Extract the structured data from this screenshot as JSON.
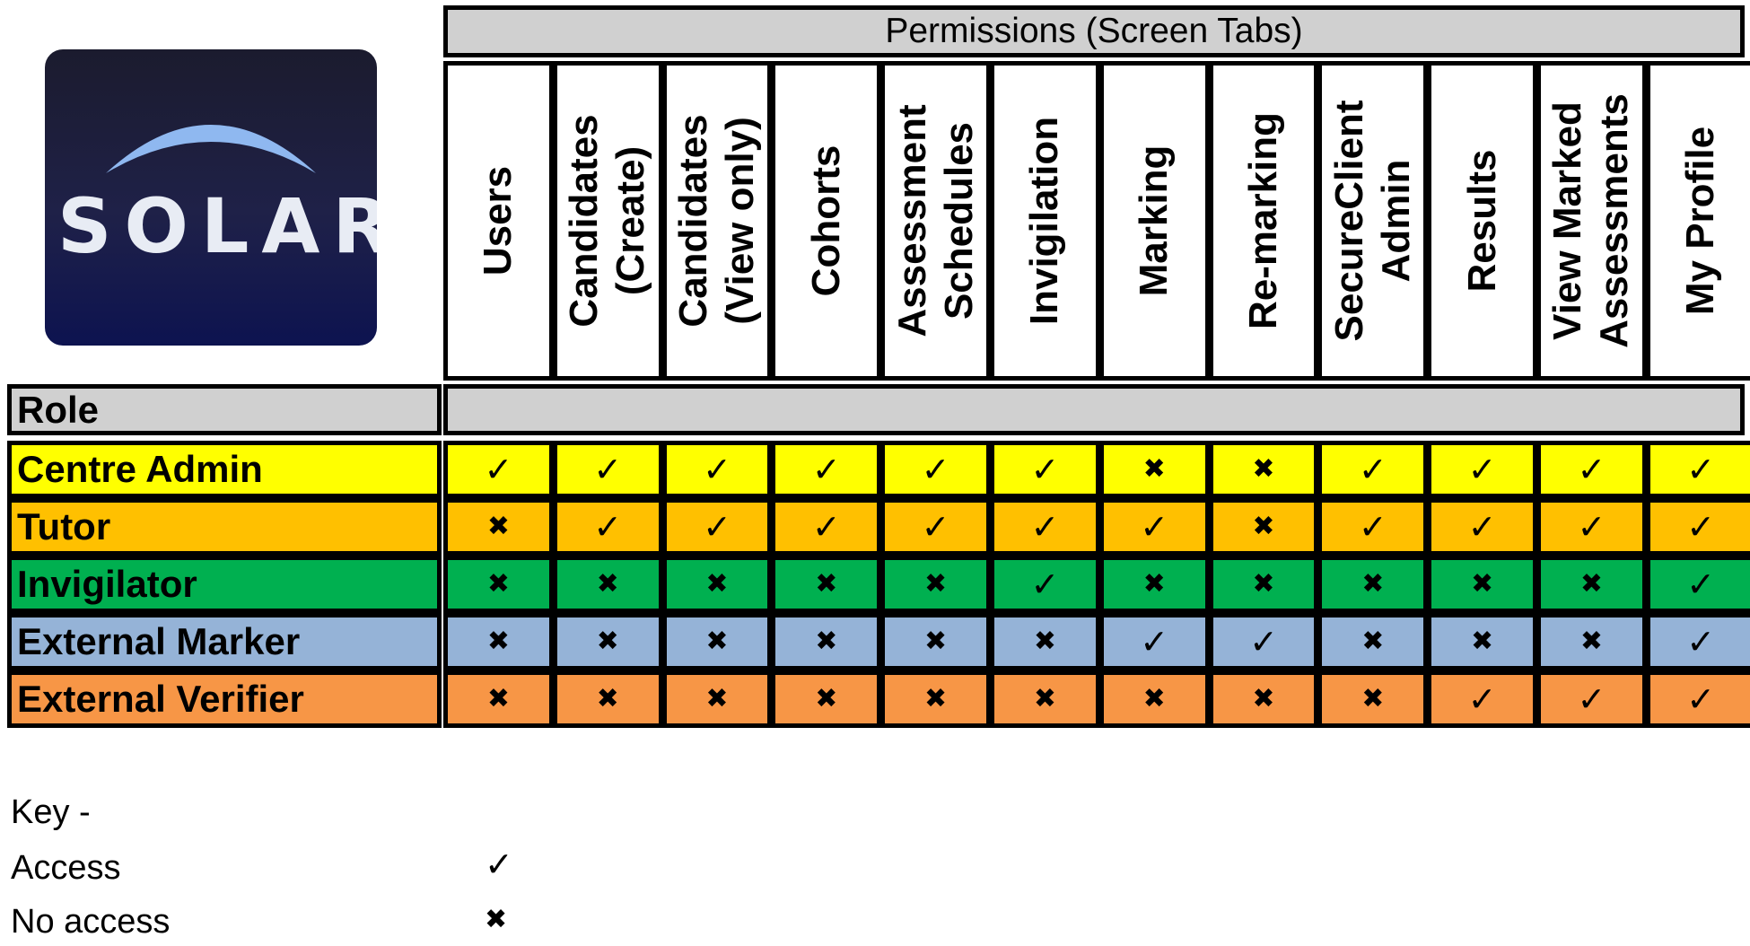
{
  "logo": {
    "text": "SOLAR",
    "background": "#1f2148",
    "arc_color": "#8fb8f0"
  },
  "permissions_title": "Permissions (Screen Tabs)",
  "columns": [
    {
      "line1": "Users",
      "line2": ""
    },
    {
      "line1": "Candidates",
      "line2": "(Create)"
    },
    {
      "line1": "Candidates",
      "line2": "(View only)"
    },
    {
      "line1": "Cohorts",
      "line2": ""
    },
    {
      "line1": "Assessment",
      "line2": "Schedules"
    },
    {
      "line1": "Invigilation",
      "line2": ""
    },
    {
      "line1": "Marking",
      "line2": ""
    },
    {
      "line1": "Re-marking",
      "line2": ""
    },
    {
      "line1": "SecureClient",
      "line2": "Admin"
    },
    {
      "line1": "Results",
      "line2": ""
    },
    {
      "line1": "View Marked",
      "line2": "Assessments"
    },
    {
      "line1": "My Profile",
      "line2": ""
    }
  ],
  "role_header": "Role",
  "rows": [
    {
      "role": "Centre Admin",
      "color": "#ffff00",
      "access": [
        true,
        true,
        true,
        true,
        true,
        true,
        false,
        false,
        true,
        true,
        true,
        true
      ]
    },
    {
      "role": "Tutor",
      "color": "#ffc000",
      "access": [
        false,
        true,
        true,
        true,
        true,
        true,
        true,
        false,
        true,
        true,
        true,
        true
      ]
    },
    {
      "role": "Invigilator",
      "color": "#00b050",
      "access": [
        false,
        false,
        false,
        false,
        false,
        true,
        false,
        false,
        false,
        false,
        false,
        true
      ]
    },
    {
      "role": "External Marker",
      "color": "#95b3d7",
      "access": [
        false,
        false,
        false,
        false,
        false,
        false,
        true,
        true,
        false,
        false,
        false,
        true
      ]
    },
    {
      "role": "External Verifier",
      "color": "#f79646",
      "access": [
        false,
        false,
        false,
        false,
        false,
        false,
        false,
        false,
        false,
        true,
        true,
        true
      ]
    }
  ],
  "symbols": {
    "check": "✓",
    "cross": "✖"
  },
  "key": {
    "title": "Key -",
    "items": [
      {
        "label": "Access",
        "symbol": "✓"
      },
      {
        "label": "No access",
        "symbol": "✖"
      }
    ]
  }
}
